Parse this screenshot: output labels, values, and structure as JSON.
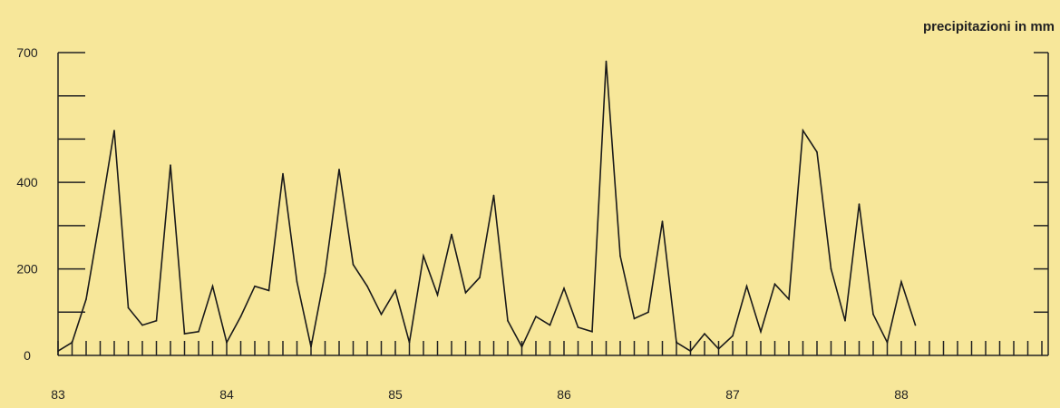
{
  "chart_data": {
    "type": "line",
    "title": "",
    "unit_label": "precipitazioni in mm",
    "xlabel": "",
    "ylabel": "",
    "ylim": [
      0,
      700
    ],
    "y_tick_labels": [
      {
        "value": 700,
        "label": "700"
      },
      {
        "value": 400,
        "label": "400"
      },
      {
        "value": 200,
        "label": "200"
      },
      {
        "value": 0,
        "label": "0"
      }
    ],
    "y_minor_ticks": [
      100,
      200,
      300,
      400,
      500,
      600,
      700
    ],
    "x_start": "1983-01",
    "x_tick_labels": [
      {
        "month_index": 0,
        "label": "83"
      },
      {
        "month_index": 12,
        "label": "84"
      },
      {
        "month_index": 24,
        "label": "85"
      },
      {
        "month_index": 36,
        "label": "86"
      },
      {
        "month_index": 48,
        "label": "87"
      },
      {
        "month_index": 60,
        "label": "88"
      }
    ],
    "x_month_ticks": 72,
    "grid": false,
    "series": [
      {
        "values": [
          10,
          30,
          130,
          320,
          520,
          110,
          70,
          80,
          440,
          50,
          55,
          160,
          30,
          90,
          160,
          150,
          420,
          170,
          20,
          190,
          430,
          210,
          160,
          95,
          150,
          30,
          230,
          140,
          280,
          145,
          180,
          370,
          80,
          20,
          90,
          70,
          155,
          65,
          55,
          680,
          230,
          85,
          100,
          310,
          30,
          10,
          50,
          15,
          45,
          160,
          55,
          165,
          130,
          520,
          470,
          200,
          80,
          350,
          95,
          30,
          170,
          70
        ]
      }
    ]
  }
}
